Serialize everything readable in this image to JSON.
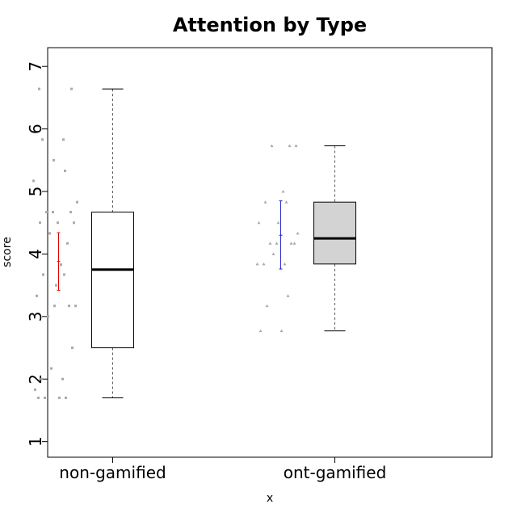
{
  "chart_data": {
    "type": "box",
    "title": "Attention by Type",
    "xlabel": "x",
    "ylabel": "score",
    "ylim": [
      0.75,
      7.3
    ],
    "yticks": [
      "1",
      "2",
      "3",
      "4",
      "5",
      "6",
      "7"
    ],
    "categories": [
      "non-gamified",
      "ont-gamified"
    ],
    "series": [
      {
        "box": {
          "min": 1.7,
          "q1": 2.5,
          "median": 3.75,
          "q3": 4.67,
          "max": 6.64
        },
        "box_color": "#ffffff",
        "mean": 3.88,
        "error_low": 3.42,
        "error_high": 4.34,
        "error_color": "#e00000",
        "points": [
          1.7,
          1.7,
          1.7,
          1.7,
          1.83,
          2.0,
          2.0,
          2.17,
          2.5,
          3.0,
          3.17,
          3.17,
          3.17,
          3.33,
          3.5,
          3.67,
          3.67,
          3.83,
          4.17,
          4.33,
          4.5,
          4.5,
          4.5,
          4.67,
          4.67,
          4.67,
          4.83,
          5.17,
          5.33,
          5.5,
          5.83,
          5.83,
          6.64,
          6.64
        ]
      },
      {
        "box": {
          "min": 2.77,
          "q1": 3.84,
          "median": 4.25,
          "q3": 4.83,
          "max": 5.73
        },
        "box_color": "#d3d3d3",
        "mean": 4.3,
        "error_low": 3.76,
        "error_high": 4.85,
        "error_color": "#2222cc",
        "points": [
          2.77,
          2.77,
          3.17,
          3.33,
          3.84,
          3.84,
          3.84,
          4.0,
          4.17,
          4.17,
          4.17,
          4.17,
          4.33,
          4.5,
          4.5,
          4.83,
          4.83,
          5.0,
          5.73,
          5.73,
          5.73
        ]
      }
    ]
  }
}
